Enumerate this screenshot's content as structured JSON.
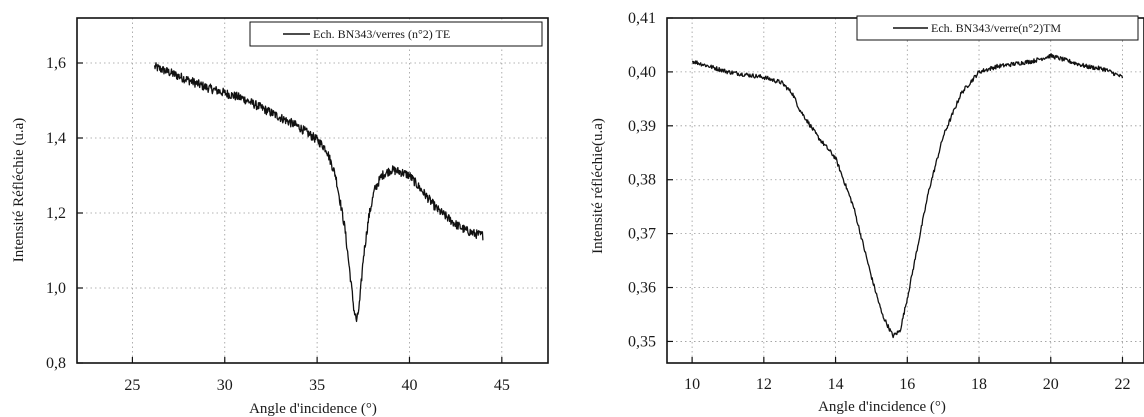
{
  "chart_data": [
    {
      "type": "line",
      "xlabel": "Angle d'incidence (°)",
      "ylabel": "Intensité Réfléchie (u.a)",
      "xlim": [
        22,
        47.5
      ],
      "ylim": [
        0.8,
        1.72
      ],
      "xticks": [
        25,
        30,
        35,
        40,
        45
      ],
      "xtick_labels": [
        "25",
        "30",
        "35",
        "40",
        "45"
      ],
      "yticks": [
        0.8,
        1.0,
        1.2,
        1.4,
        1.6
      ],
      "ytick_labels": [
        "0,8",
        "1,0",
        "1,2",
        "1,4",
        "1,6"
      ],
      "grid": true,
      "legend_position": "top-right",
      "series": [
        {
          "name": "Ech. BN343/verres (n°2) TE",
          "noise": 0.012,
          "x": [
            26.2,
            27,
            28,
            29,
            30,
            31,
            32,
            33,
            34,
            35,
            35.5,
            36,
            36.5,
            36.8,
            37,
            37.15,
            37.3,
            37.5,
            37.8,
            38.1,
            38.5,
            39,
            39.5,
            40,
            40.5,
            41,
            41.5,
            42,
            42.5,
            43,
            43.5,
            44
          ],
          "y": [
            1.59,
            1.575,
            1.555,
            1.535,
            1.52,
            1.505,
            1.48,
            1.455,
            1.43,
            1.395,
            1.37,
            1.3,
            1.16,
            1.03,
            0.94,
            0.91,
            0.96,
            1.08,
            1.19,
            1.26,
            1.3,
            1.315,
            1.31,
            1.3,
            1.27,
            1.24,
            1.21,
            1.19,
            1.17,
            1.155,
            1.145,
            1.14
          ]
        }
      ]
    },
    {
      "type": "line",
      "xlabel": "Angle d'incidence (°)",
      "ylabel": "Intensité réfléchie(u.a)",
      "xlim": [
        9.3,
        22.6
      ],
      "ylim": [
        0.346,
        0.41
      ],
      "xticks": [
        10,
        12,
        14,
        16,
        18,
        20,
        22
      ],
      "xtick_labels": [
        "10",
        "12",
        "14",
        "16",
        "18",
        "20",
        "22"
      ],
      "yticks": [
        0.35,
        0.36,
        0.37,
        0.38,
        0.39,
        0.4,
        0.41
      ],
      "ytick_labels": [
        "0,35",
        "0,36",
        "0,37",
        "0,38",
        "0,39",
        "0,40",
        "0,41"
      ],
      "grid": true,
      "legend_position": "top-right",
      "series": [
        {
          "name": "Ech. BN343/verre(n°2)TM",
          "noise": 0.0004,
          "x": [
            10,
            10.5,
            11,
            11.5,
            12,
            12.5,
            12.8,
            13,
            13.5,
            14,
            14.5,
            15,
            15.3,
            15.6,
            15.8,
            16,
            16.3,
            16.6,
            17,
            17.5,
            18,
            18.5,
            19,
            19.5,
            20,
            20.5,
            21,
            21.5,
            22
          ],
          "y": [
            0.402,
            0.401,
            0.4,
            0.3995,
            0.399,
            0.398,
            0.396,
            0.393,
            0.388,
            0.384,
            0.375,
            0.362,
            0.355,
            0.351,
            0.352,
            0.358,
            0.368,
            0.378,
            0.388,
            0.396,
            0.4,
            0.401,
            0.4015,
            0.402,
            0.403,
            0.402,
            0.401,
            0.4005,
            0.399
          ]
        }
      ]
    }
  ]
}
